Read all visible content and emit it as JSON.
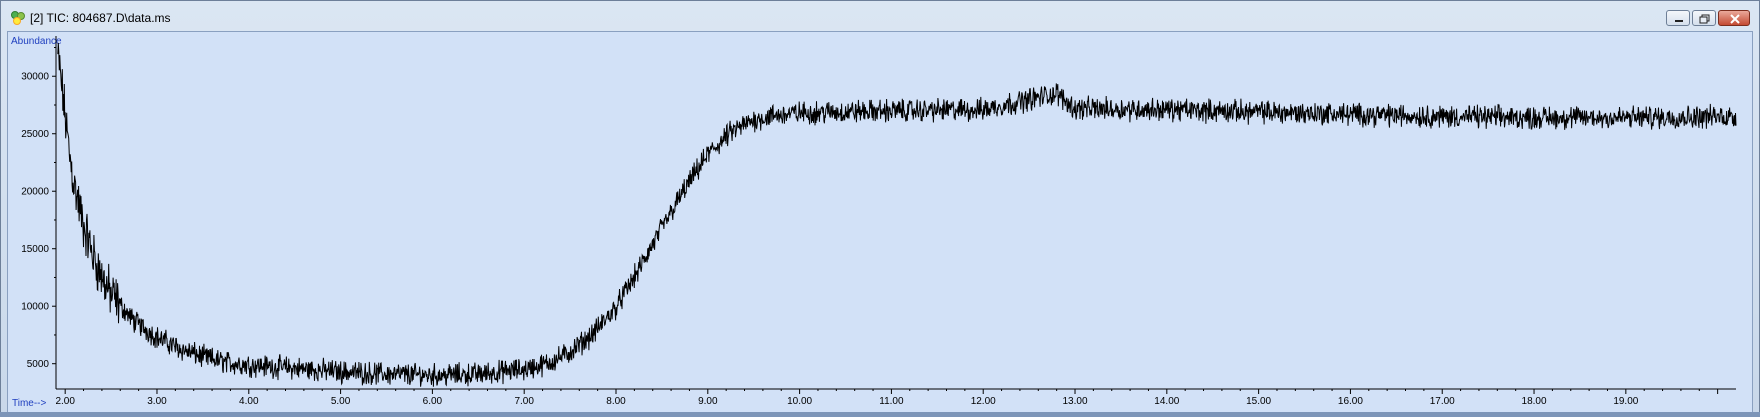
{
  "window": {
    "title": "[2] TIC: 804687.D\\data.ms",
    "buttons": [
      "minimize",
      "maximize",
      "close"
    ],
    "accent_color": "#1f3fbf"
  },
  "chart_data": {
    "type": "line",
    "title": "",
    "ylabel": "Abundance",
    "xlabel": "Time-->",
    "xlim": [
      1.9,
      20.2
    ],
    "ylim": [
      2800,
      33500
    ],
    "x_ticks": [
      "2.00",
      "3.00",
      "4.00",
      "5.00",
      "6.00",
      "7.00",
      "8.00",
      "9.00",
      "10.00",
      "11.00",
      "12.00",
      "13.00",
      "14.00",
      "15.00",
      "16.00",
      "17.00",
      "18.00",
      "19.00"
    ],
    "y_ticks": [
      "5000",
      "10000",
      "15000",
      "20000",
      "25000",
      "30000"
    ],
    "grid": false,
    "series": [
      {
        "color": "#000000",
        "x": [
          1.9,
          1.95,
          2.0,
          2.05,
          2.1,
          2.2,
          2.3,
          2.4,
          2.5,
          2.75,
          3.0,
          3.25,
          3.5,
          3.75,
          4.0,
          4.5,
          5.0,
          5.5,
          6.0,
          6.5,
          7.0,
          7.25,
          7.5,
          7.75,
          8.0,
          8.25,
          8.5,
          8.75,
          9.0,
          9.25,
          9.5,
          9.75,
          10.0,
          11.0,
          12.0,
          12.8,
          13.0,
          14.0,
          15.0,
          16.0,
          17.0,
          18.0,
          19.0,
          20.0,
          20.2
        ],
        "y": [
          33000,
          30000,
          26500,
          23000,
          20500,
          17000,
          14500,
          12500,
          11000,
          8700,
          7300,
          6300,
          5600,
          5100,
          4900,
          4600,
          4300,
          4100,
          4000,
          4100,
          4500,
          5000,
          6000,
          7600,
          9900,
          13200,
          16800,
          20200,
          23200,
          25100,
          26200,
          26600,
          26800,
          27000,
          27100,
          28500,
          27200,
          27100,
          26900,
          26700,
          26500,
          26400,
          26400,
          26500,
          26500
        ]
      }
    ],
    "noise_amplitude": 1500
  }
}
